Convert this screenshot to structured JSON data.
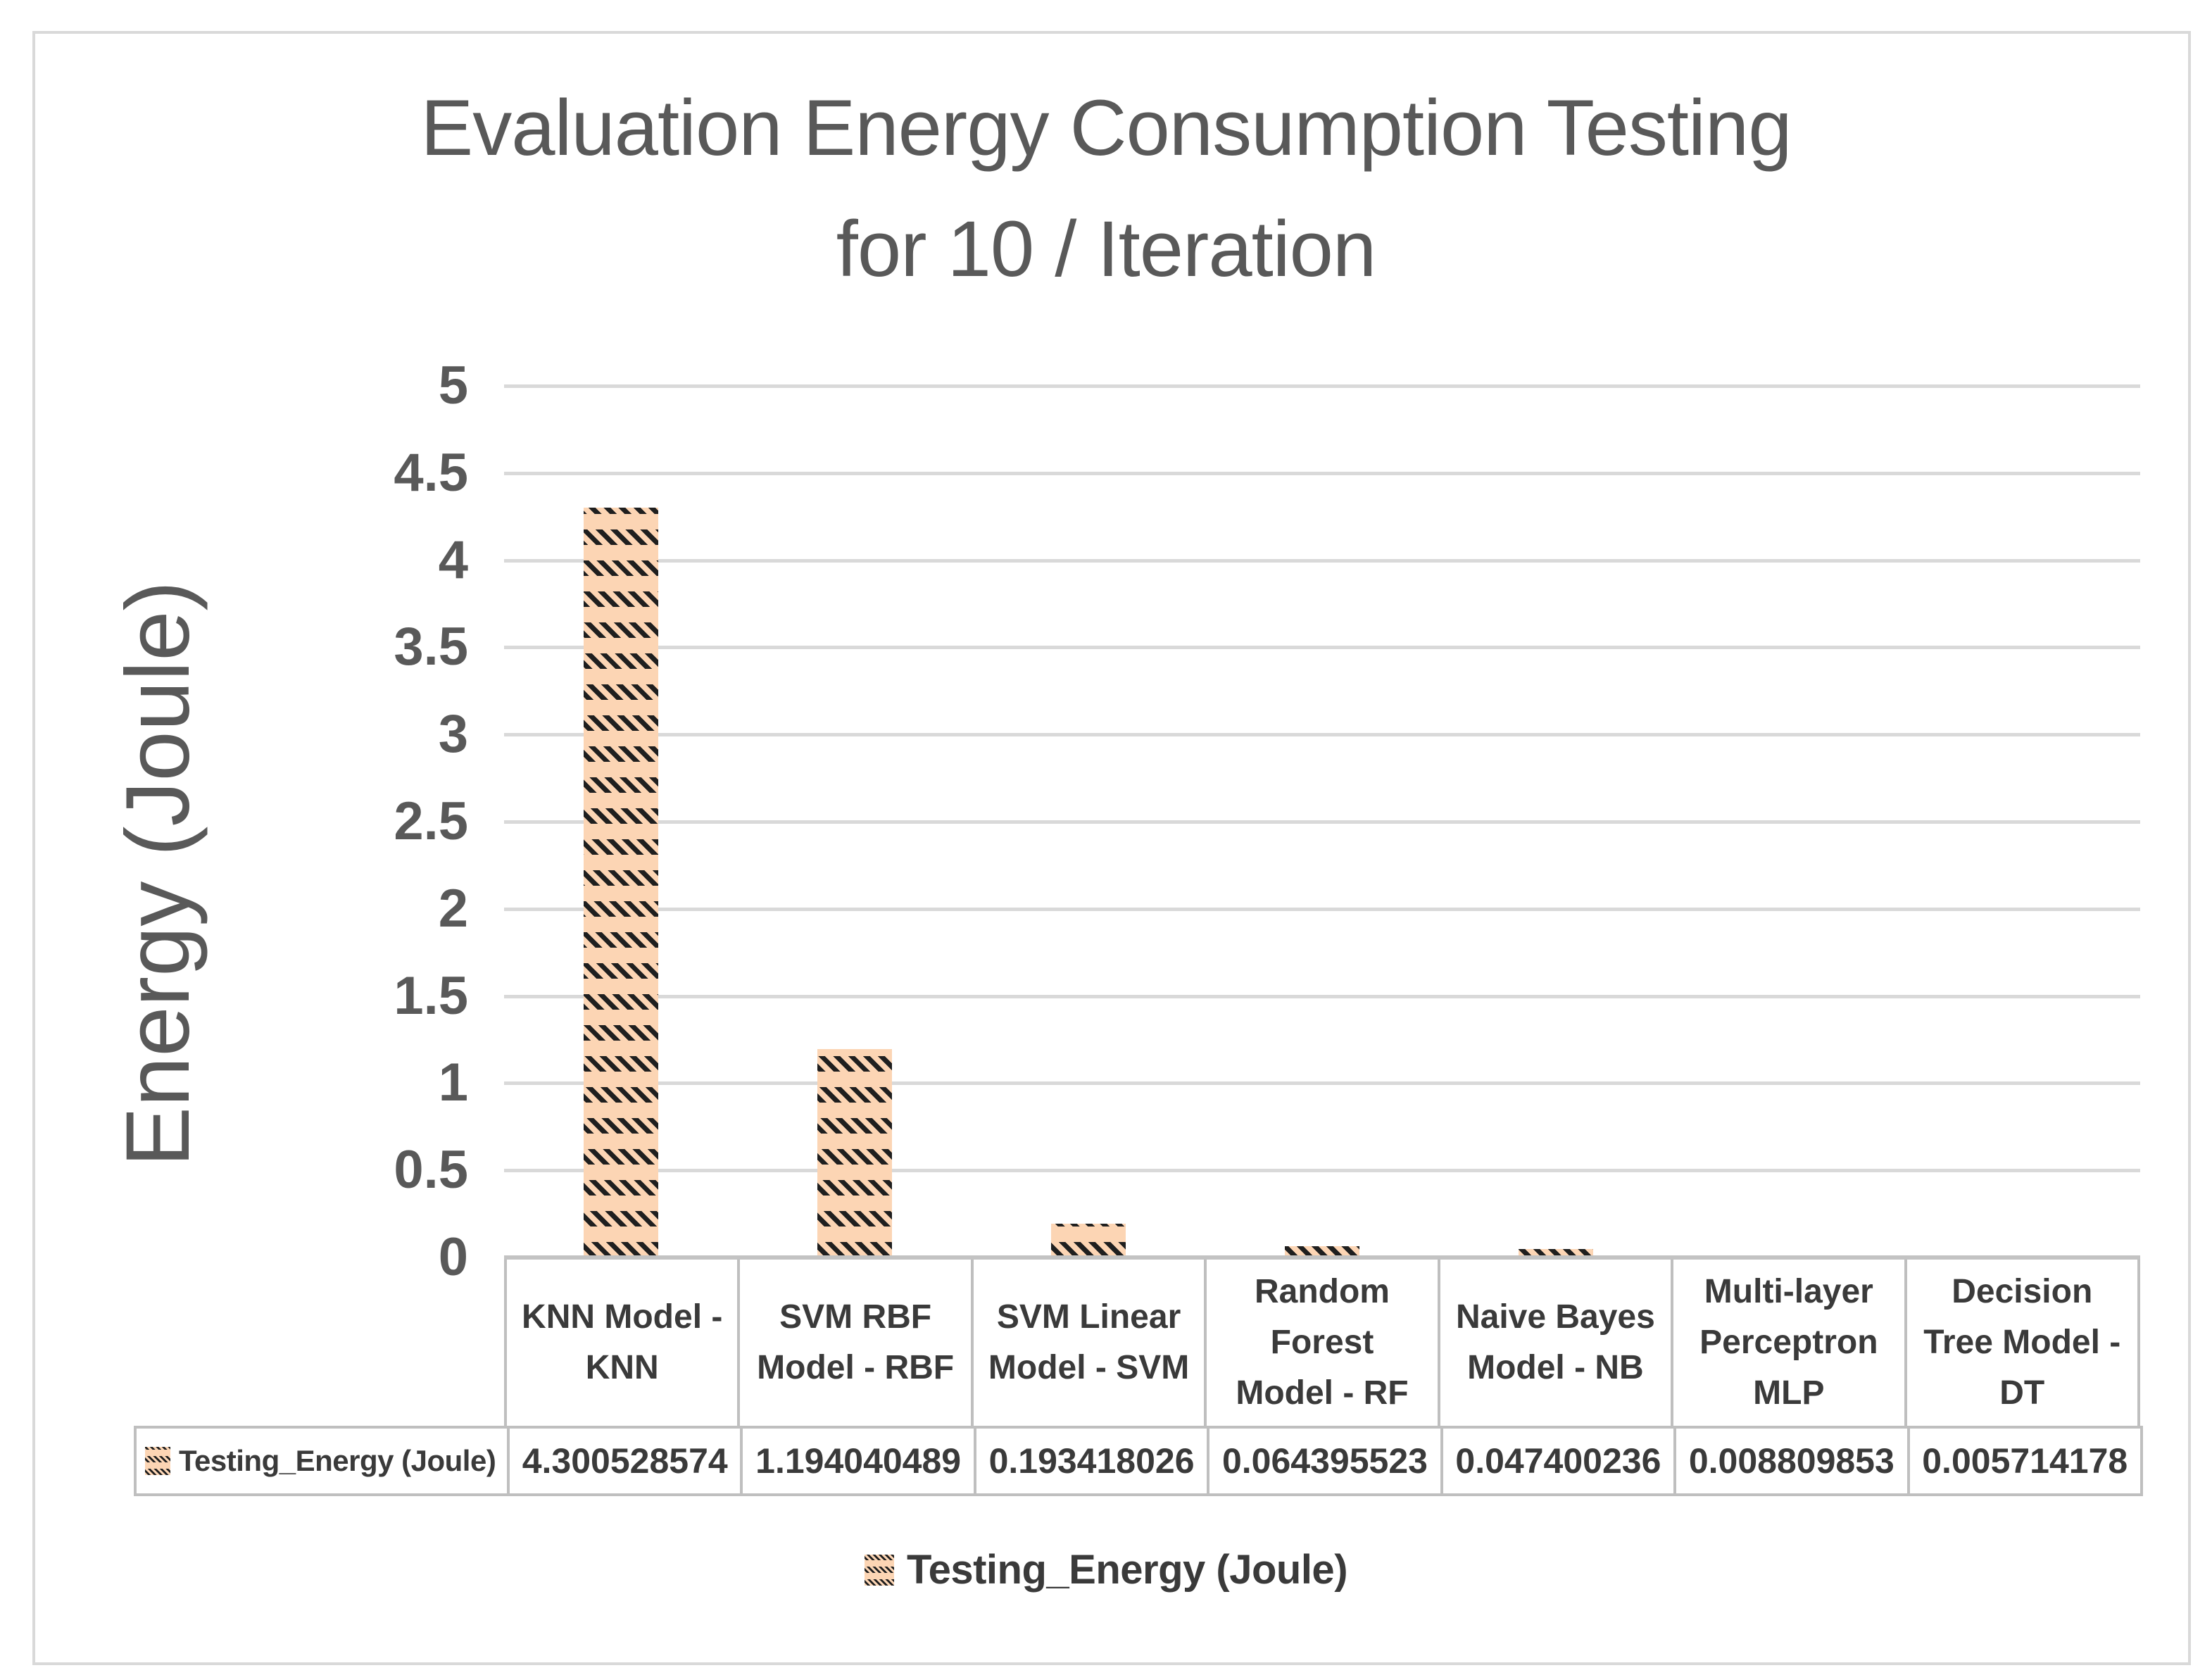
{
  "title": {
    "line1": "Evaluation Energy Consumption Testing",
    "line2": "for 10 / Iteration"
  },
  "y_axis": {
    "label": "Energy (Joule)",
    "ticks": [
      "5",
      "4.5",
      "4",
      "3.5",
      "3",
      "2.5",
      "2",
      "1.5",
      "1",
      "0.5",
      "0"
    ]
  },
  "table": {
    "row_header": "Testing_Energy (Joule)"
  },
  "legend": {
    "label": "Testing_Energy (Joule)"
  },
  "colors": {
    "bar_fill": "#fcd5b4",
    "bar_pattern": "#1f1f1f",
    "gridline": "#d9d9d9",
    "table_border": "#bfbfbf",
    "axis_text": "#595959",
    "table_text": "#3a3a3a",
    "frame_border": "#d9d9d9"
  },
  "chart_data": {
    "type": "bar",
    "title": "Evaluation Energy Consumption Testing for 10 / Iteration",
    "xlabel": "",
    "ylabel": "Energy (Joule)",
    "ylim": [
      0,
      5
    ],
    "ytick_step": 0.5,
    "grid": true,
    "legend_position": "bottom",
    "series_name": "Testing_Energy (Joule)",
    "categories": [
      "KNN Model - KNN",
      "SVM RBF Model - RBF",
      "SVM Linear Model - SVM",
      "Random Forest Model - RF",
      "Naive Bayes Model - NB",
      "Multi-layer Perceptron MLP",
      "Decision Tree Model - DT"
    ],
    "values": [
      4.300528574,
      1.194040489,
      0.193418026,
      0.064395523,
      0.047400236,
      0.008809853,
      0.005714178
    ],
    "value_labels": [
      "4.300528574",
      "1.194040489",
      "0.193418026",
      "0.064395523",
      "0.047400236",
      "0.008809853",
      "0.005714178"
    ]
  }
}
